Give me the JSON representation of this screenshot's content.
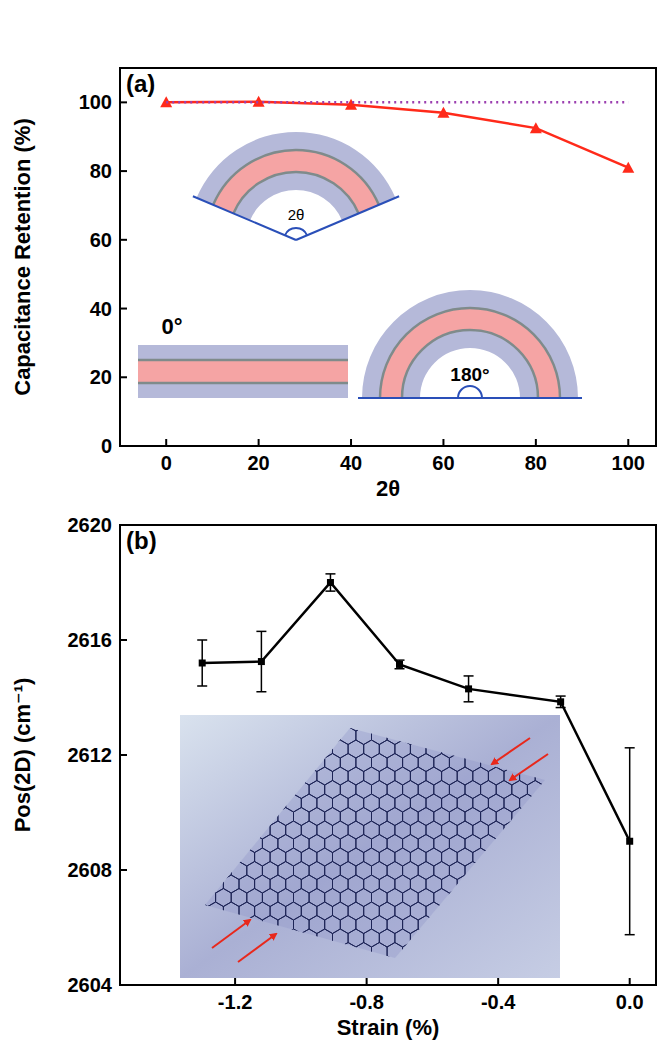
{
  "chart_data": [
    {
      "type": "line",
      "title": "(a)",
      "x_label": "2θ",
      "y_label": "Capacitance Retention (%)",
      "xlim": [
        -10,
        106
      ],
      "xticks": [
        0,
        20,
        40,
        60,
        80,
        100
      ],
      "ylim": [
        0,
        110
      ],
      "yticks": [
        0,
        20,
        40,
        60,
        80,
        100
      ],
      "grid": false,
      "annotations": [
        "2θ",
        "0°",
        "180°"
      ],
      "series": [
        {
          "color": "#ff2a1a",
          "marker": "triangle",
          "line_style": "solid",
          "x": [
            0,
            20,
            40,
            60,
            80,
            100
          ],
          "values": [
            100,
            100.2,
            99.3,
            97,
            92.5,
            81
          ]
        },
        {
          "color": "#9b3fb0",
          "line_style": "dotted",
          "x": [
            0,
            100
          ],
          "values": [
            100,
            100
          ]
        }
      ]
    },
    {
      "type": "line",
      "title": "(b)",
      "x_label": "Strain (%)",
      "y_label": "Pos(2D) (cm⁻¹)",
      "xlim": [
        -1.55,
        0.08
      ],
      "xticks": [
        -1.2,
        -0.8,
        -0.4,
        {
          "value": 0,
          "label": "0.0"
        }
      ],
      "ylim": [
        2604,
        2620
      ],
      "yticks": [
        2604,
        2608,
        2612,
        2616,
        2620
      ],
      "grid": false,
      "series": [
        {
          "color": "#000000",
          "marker": "square",
          "line_style": "solid",
          "x": [
            -1.3,
            -1.12,
            -0.91,
            -0.7,
            -0.49,
            -0.21,
            0
          ],
          "values": [
            2615.2,
            2615.25,
            2618.0,
            2615.15,
            2614.3,
            2613.85,
            2609.0
          ],
          "errors": [
            0.8,
            1.05,
            0.3,
            0.15,
            0.45,
            0.2,
            3.25
          ]
        }
      ]
    }
  ]
}
